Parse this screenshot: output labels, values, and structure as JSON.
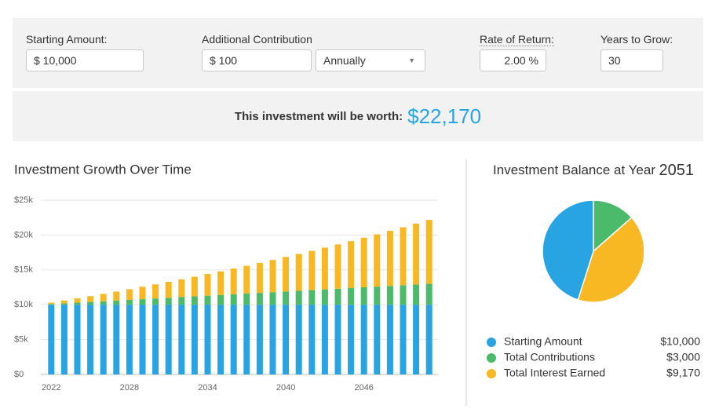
{
  "form": {
    "starting_amount": {
      "label": "Starting Amount:",
      "value": "$ 10,000"
    },
    "additional_contribution": {
      "label": "Additional Contribution",
      "value": "$ 100",
      "frequency": "Annually"
    },
    "rate_of_return": {
      "label": "Rate of Return:",
      "value": "2.00 %"
    },
    "years_to_grow": {
      "label": "Years to Grow:",
      "value": "30"
    }
  },
  "result": {
    "label": "This investment will be worth:",
    "value": "$22,170"
  },
  "chart_data": [
    {
      "type": "stacked_bar",
      "title": "Investment Growth Over Time",
      "categories": [
        "2022",
        null,
        null,
        null,
        null,
        null,
        "2028",
        null,
        null,
        null,
        null,
        null,
        "2034",
        null,
        null,
        null,
        null,
        null,
        "2040",
        null,
        null,
        null,
        null,
        null,
        "2046",
        null,
        null,
        null,
        null,
        null
      ],
      "series": [
        {
          "color": "#27a4e1",
          "values": [
            10000,
            10000,
            10000,
            10000,
            10000,
            10000,
            10000,
            10000,
            10000,
            10000,
            10000,
            10000,
            10000,
            10000,
            10000,
            10000,
            10000,
            10000,
            10000,
            10000,
            10000,
            10000,
            10000,
            10000,
            10000,
            10000,
            10000,
            10000,
            10000,
            10000
          ]
        },
        {
          "color": "#4cba6b",
          "values": [
            100,
            200,
            300,
            400,
            500,
            600,
            700,
            800,
            900,
            1000,
            1100,
            1200,
            1300,
            1400,
            1500,
            1600,
            1700,
            1800,
            1900,
            2000,
            2100,
            2200,
            2300,
            2400,
            2500,
            2600,
            2700,
            2800,
            2900,
            3000
          ]
        },
        {
          "color": "#f8b824",
          "values": [
            200,
            406,
            618,
            836,
            1061,
            1292,
            1530,
            1775,
            2026,
            2285,
            2551,
            2824,
            3104,
            3392,
            3688,
            3992,
            4304,
            4624,
            4952,
            5289,
            5635,
            5990,
            6353,
            6727,
            7109,
            7501,
            7903,
            8315,
            8738,
            9170
          ]
        }
      ],
      "ylim": [
        0,
        25000
      ],
      "yticks": [
        {
          "value": 0,
          "label": "$0"
        },
        {
          "value": 5000,
          "label": "$5k"
        },
        {
          "value": 10000,
          "label": "$10k"
        },
        {
          "value": 15000,
          "label": "$15k"
        },
        {
          "value": 20000,
          "label": "$20k"
        },
        {
          "value": 25000,
          "label": "$25k"
        }
      ],
      "grid": true
    },
    {
      "type": "pie",
      "title": "Investment Balance at Year",
      "title_year": "2051",
      "categories": [
        "Starting Amount",
        "Total Contributions",
        "Total Interest Earned"
      ],
      "values": [
        10000,
        3000,
        9170
      ],
      "value_labels": [
        "$10,000",
        "$3,000",
        "$9,170"
      ],
      "colors": [
        "#27a4e1",
        "#4cba6b",
        "#f8b824"
      ]
    }
  ]
}
